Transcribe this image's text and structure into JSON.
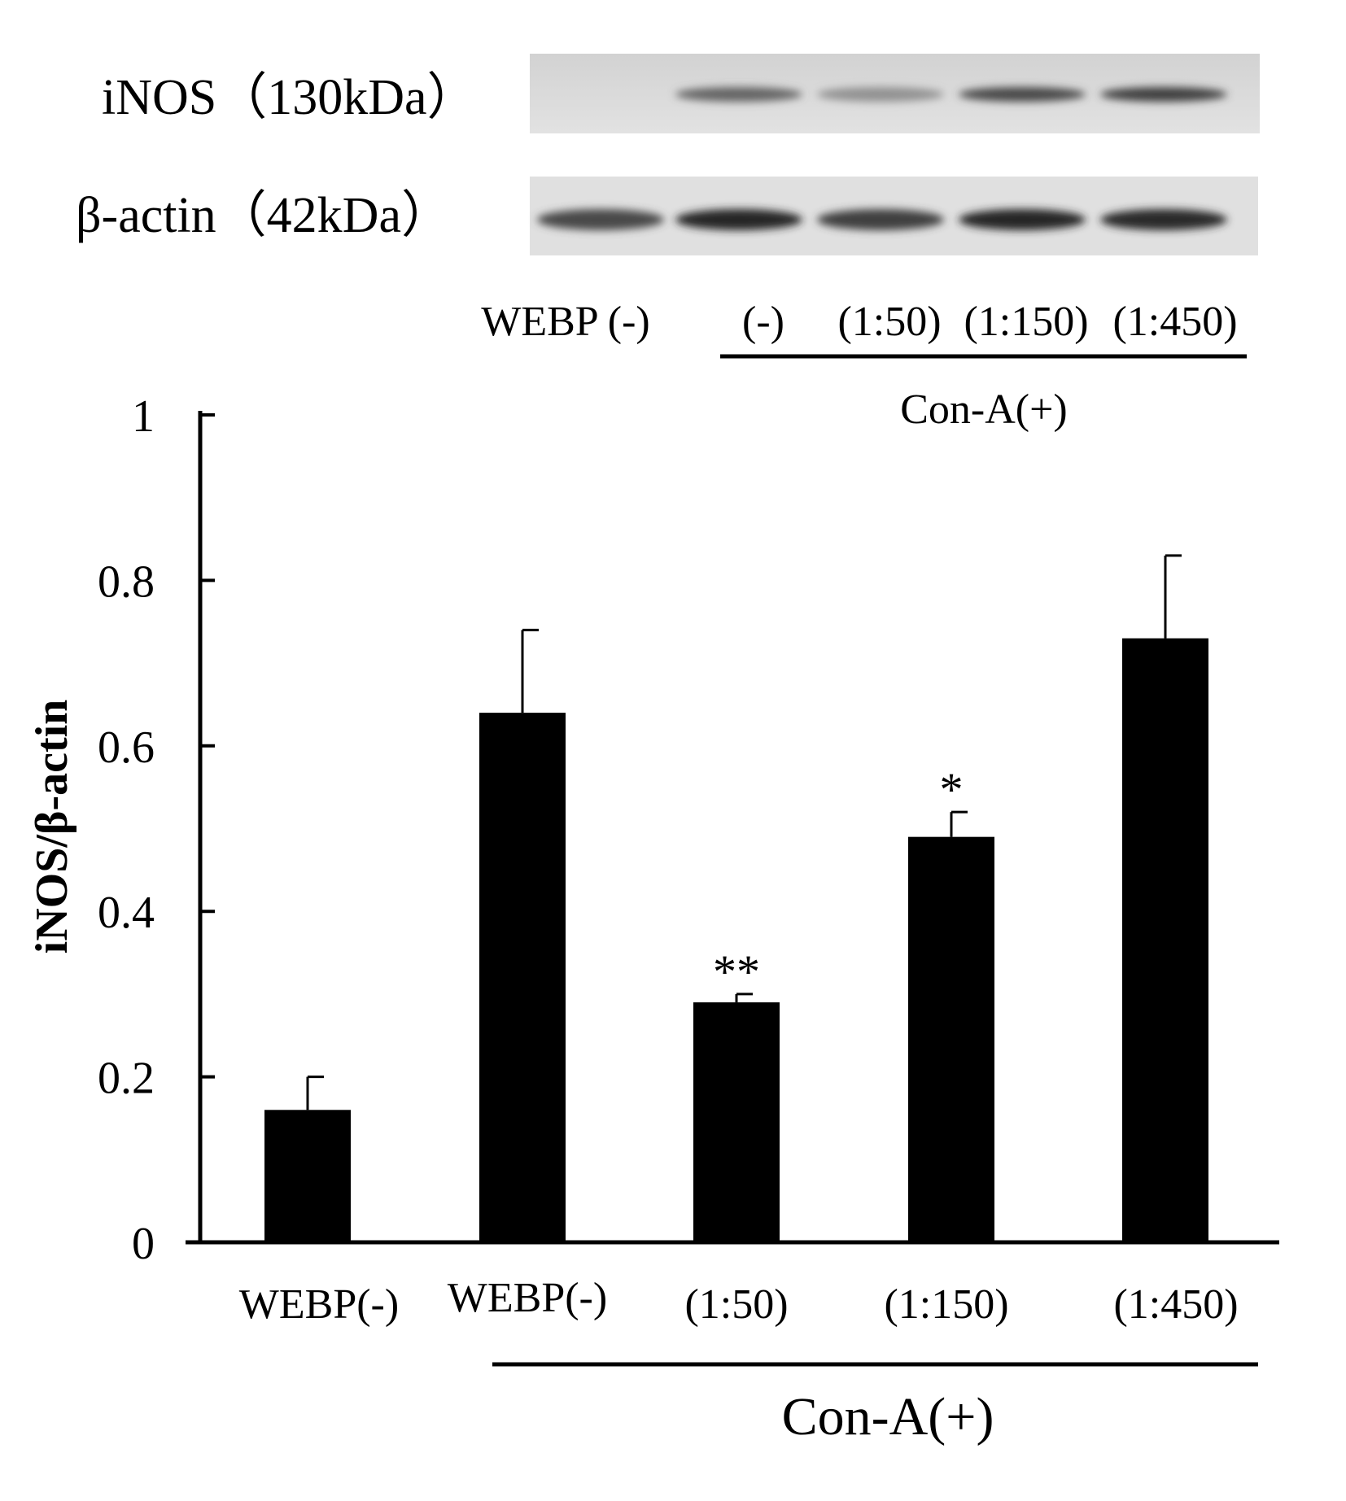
{
  "blot": {
    "rows": [
      {
        "label": "iNOS（130kDa）",
        "bands": [
          0.0,
          0.55,
          0.3,
          0.7,
          0.75
        ]
      },
      {
        "label": "β-actin（42kDa）",
        "bands": [
          0.7,
          0.9,
          0.75,
          0.9,
          0.88
        ]
      }
    ],
    "lane_labels": [
      "WEBP (-)",
      "(-)",
      "(1:50)",
      "(1:150)",
      "(1:450)"
    ],
    "group_label": "Con-A(+)"
  },
  "chart_data": {
    "type": "bar",
    "categories": [
      "WEBP(-)",
      "WEBP(-)",
      "(1:50)",
      "(1:150)",
      "(1:450)"
    ],
    "values": [
      0.16,
      0.64,
      0.29,
      0.49,
      0.73
    ],
    "errors": [
      0.04,
      0.1,
      0.01,
      0.03,
      0.1
    ],
    "significance": [
      "",
      "",
      "**",
      "*",
      ""
    ],
    "ylabel": "iNOS/β-actin",
    "ylim": [
      0,
      1
    ],
    "yticks": [
      0,
      0.2,
      0.4,
      0.6,
      0.8,
      1
    ],
    "ytick_labels": [
      "0",
      "0.2",
      "0.4",
      "0.6",
      "0.8",
      "1"
    ],
    "group_label": "Con-A(+)",
    "bar_color": "#000000",
    "grid": false
  }
}
